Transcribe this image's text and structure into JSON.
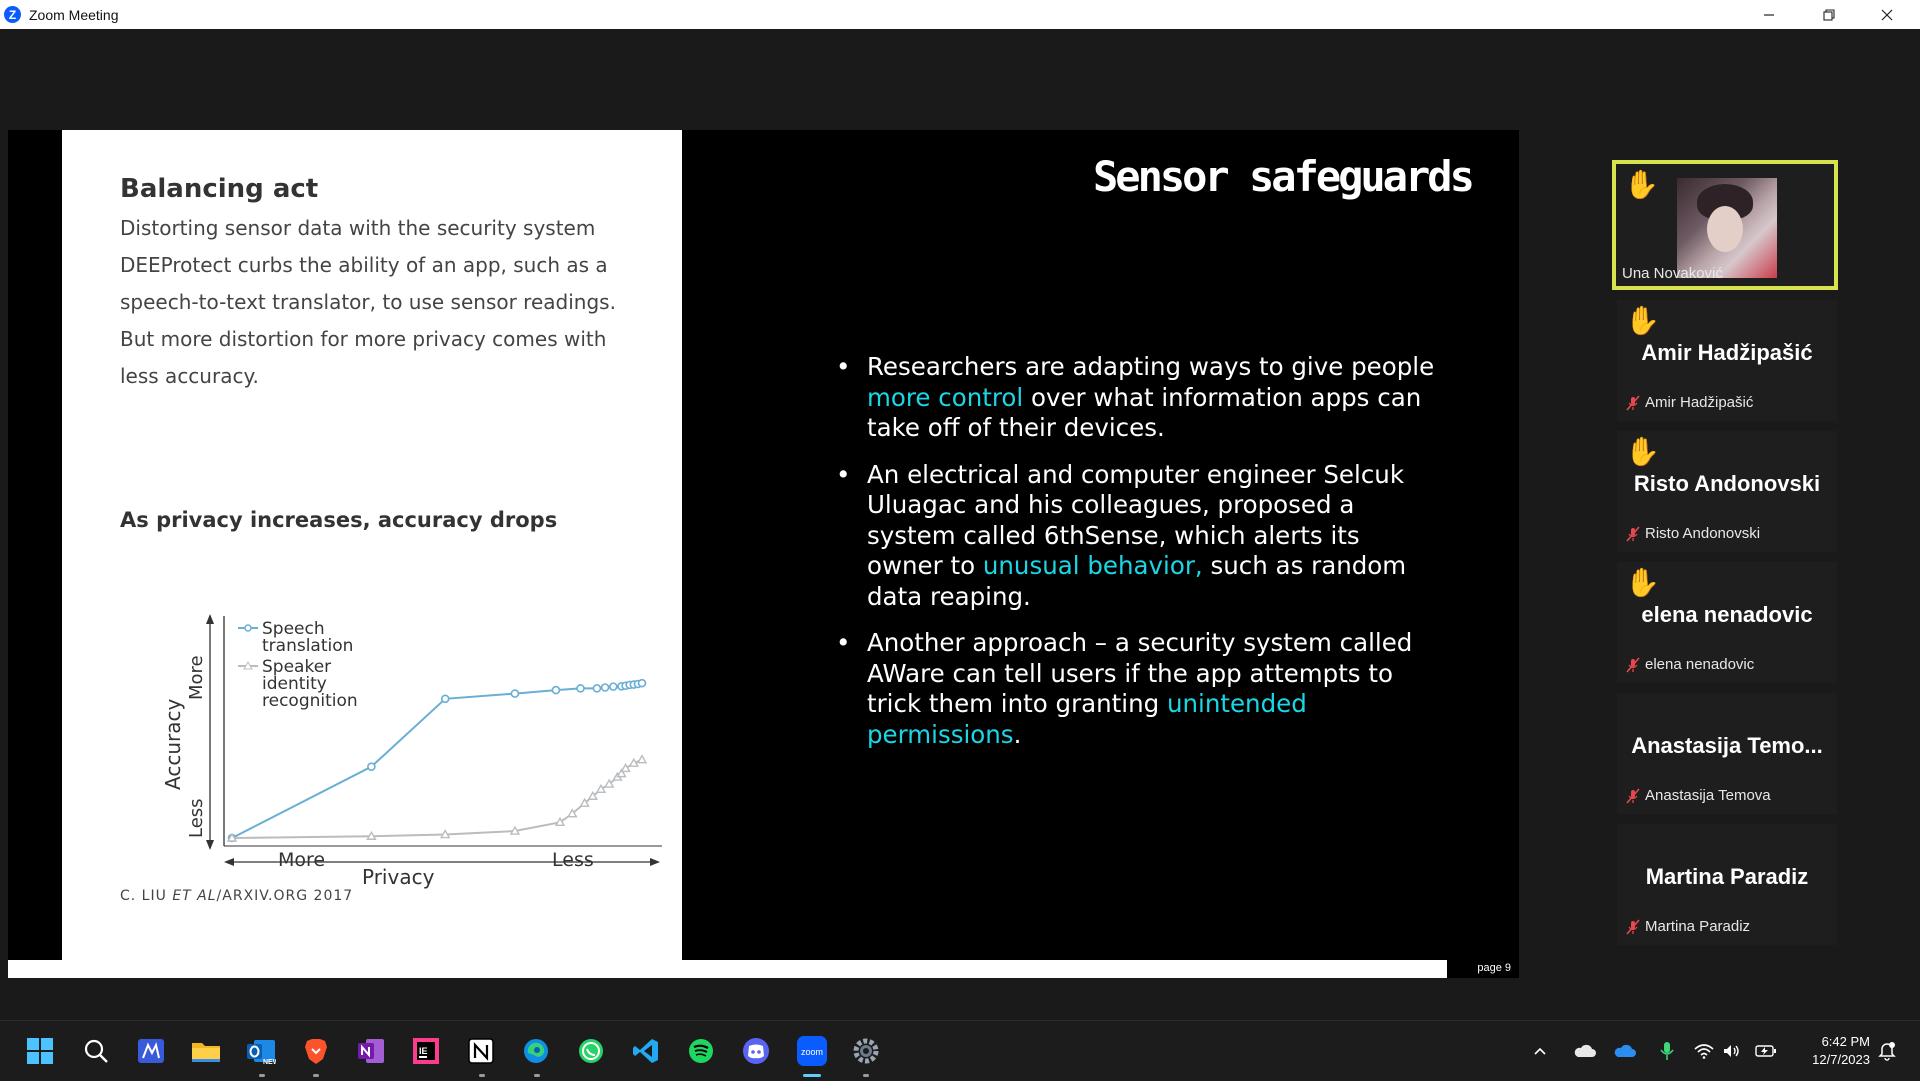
{
  "window": {
    "title": "Zoom Meeting",
    "app_logo_letter": "Z"
  },
  "slide": {
    "title": "Sensor safeguards",
    "page_label": "page 9",
    "bullets": [
      {
        "before": "Researchers are adapting ways to give people ",
        "highlight": "more control",
        "after": " over what information apps can take off of their devices."
      },
      {
        "before": "An electrical and computer engineer Selcuk Uluagac and his colleagues, proposed a system called 6thSense, which alerts its owner to ",
        "highlight": "unusual behavior,",
        "after": " such as random data reaping."
      },
      {
        "before": "Another approach – a security system called AWare can tell users if the app attempts to trick them into granting ",
        "highlight": "unintended permissions",
        "after": "."
      }
    ],
    "highlight_color": "#1bd7e6"
  },
  "slide_image": {
    "heading": "Balancing act",
    "body": "Distorting sensor data with the security system DEEProtect curbs the ability of an app, such as a speech-to-text translator, to use sensor readings. But more distortion for more privacy comes with less accuracy.",
    "chart_heading": "As privacy increases, accuracy drops",
    "credit_prefix": "C. LIU ",
    "credit_italic": "ET AL",
    "credit_suffix": "/ARXIV.ORG 2017"
  },
  "chart_data": {
    "type": "line",
    "title": "As privacy increases, accuracy drops",
    "xlabel": "Privacy",
    "ylabel": "Accuracy",
    "x_tick_labels": [
      "More",
      "Less"
    ],
    "y_tick_labels": [
      "Less",
      "More"
    ],
    "x_range": [
      0,
      10
    ],
    "y_range": [
      0,
      10
    ],
    "grid": false,
    "legend_position": "top-left",
    "series": [
      {
        "name": "Speech translation",
        "color": "#6aaed6",
        "marker": "circle",
        "x": [
          0,
          3.4,
          5.2,
          6.9,
          7.9,
          8.5,
          8.9,
          9.1,
          9.3,
          9.5,
          9.6,
          9.7,
          9.8,
          9.9,
          10
        ],
        "y": [
          0,
          4.1,
          8.0,
          8.3,
          8.5,
          8.6,
          8.6,
          8.65,
          8.7,
          8.72,
          8.75,
          8.8,
          8.82,
          8.85,
          8.9
        ]
      },
      {
        "name": "Speaker identity recognition",
        "color": "#b9bdc0",
        "marker": "triangle",
        "x": [
          0,
          3.4,
          5.2,
          6.9,
          8.0,
          8.3,
          8.6,
          8.8,
          9.0,
          9.2,
          9.4,
          9.5,
          9.6,
          9.8,
          10
        ],
        "y": [
          0,
          0.1,
          0.2,
          0.4,
          0.9,
          1.4,
          2.0,
          2.4,
          2.8,
          3.1,
          3.5,
          3.7,
          4.0,
          4.3,
          4.5
        ]
      }
    ]
  },
  "participants": [
    {
      "display": "",
      "label": "Una Novaković",
      "hand_raised": true,
      "muted": false,
      "has_video": true
    },
    {
      "display": "Amir Hadžipašić",
      "label": "Amir Hadžipašić",
      "hand_raised": true,
      "muted": true,
      "has_video": false
    },
    {
      "display": "Risto Andonovski",
      "label": "Risto Andonovski",
      "hand_raised": true,
      "muted": true,
      "has_video": false
    },
    {
      "display": "elena nenadovic",
      "label": "elena nenadovic",
      "hand_raised": true,
      "muted": true,
      "has_video": false
    },
    {
      "display": "Anastasija  Temo...",
      "label": "Anastasija Temova",
      "hand_raised": false,
      "muted": true,
      "has_video": false
    },
    {
      "display": "Martina Paradiz",
      "label": "Martina Paradiz",
      "hand_raised": false,
      "muted": true,
      "has_video": false
    }
  ],
  "taskbar": {
    "apps": [
      "windows-start",
      "search",
      "app-m",
      "file-explorer",
      "outlook",
      "brave",
      "onenote",
      "intellij",
      "notion",
      "edge",
      "whatsapp",
      "vscode",
      "spotify",
      "discord",
      "zoom",
      "settings"
    ],
    "active_app": "zoom",
    "zoom_label": "zoom",
    "time": "6:42 PM",
    "date": "12/7/2023"
  }
}
